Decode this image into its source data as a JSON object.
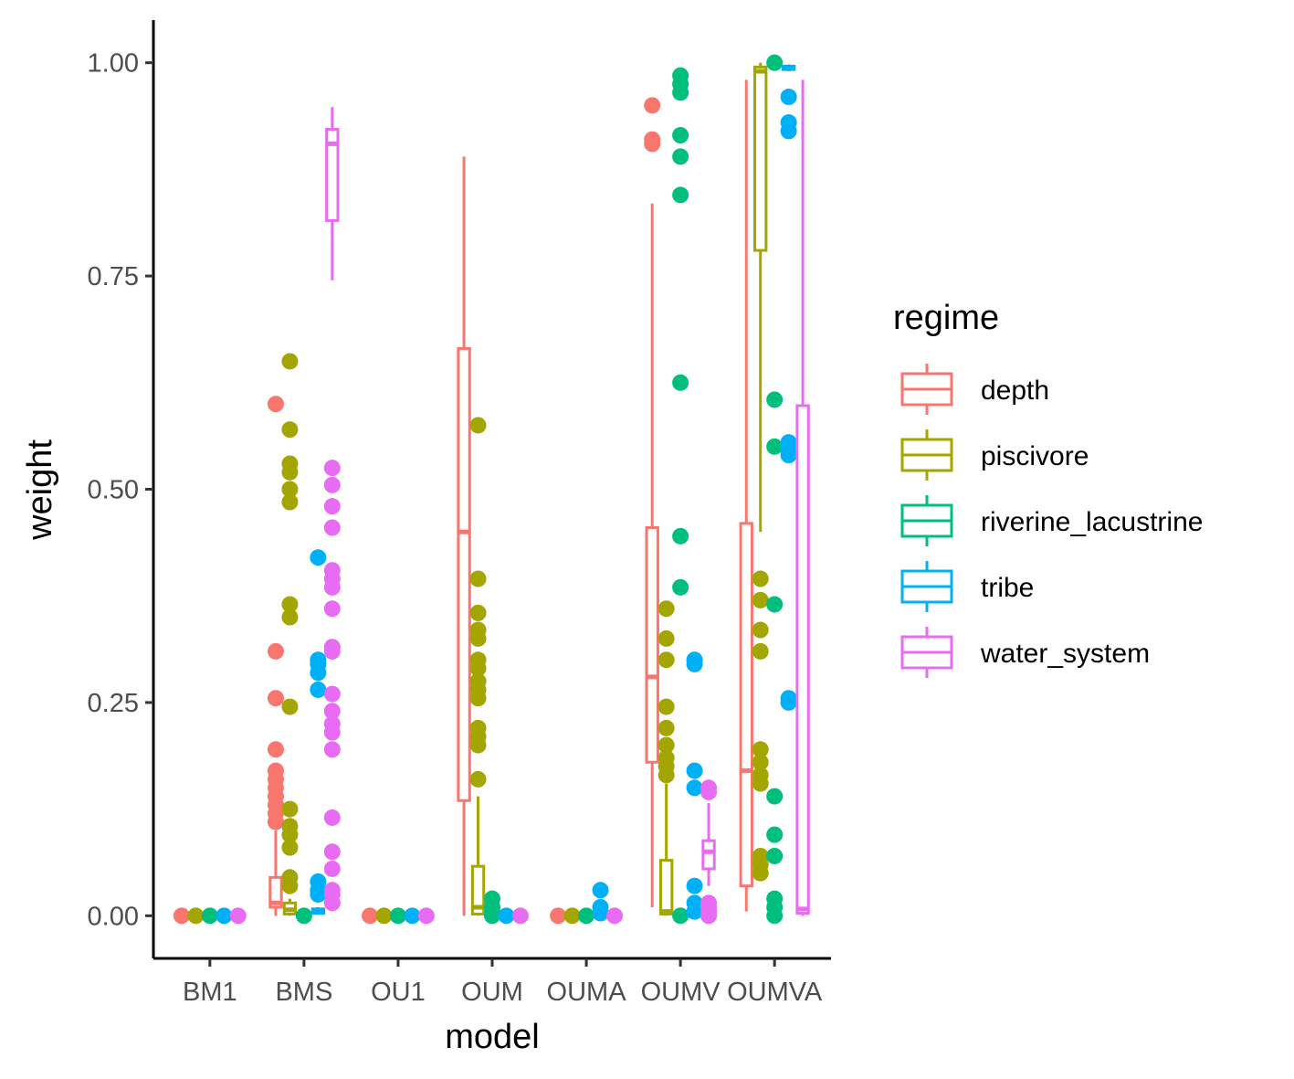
{
  "chart_data": {
    "type": "boxplot",
    "xlabel": "model",
    "ylabel": "weight",
    "categories": [
      "BM1",
      "BMS",
      "OU1",
      "OUM",
      "OUMA",
      "OUMV",
      "OUMVA"
    ],
    "y_ticks": [
      "0.00",
      "0.25",
      "0.50",
      "0.75",
      "1.00"
    ],
    "ylim": [
      -0.05,
      1.05
    ],
    "grid": false,
    "legend": {
      "title": "regime",
      "placement": "right"
    },
    "series": [
      {
        "name": "depth",
        "color": "#F8766D",
        "boxes": [
          {
            "category": "BM1",
            "q1": 0,
            "median": 0,
            "q3": 0,
            "lower": 0,
            "upper": 0,
            "outliers": [
              0
            ]
          },
          {
            "category": "BMS",
            "q1": 0.01,
            "median": 0.015,
            "q3": 0.045,
            "lower": 0,
            "upper": 0.1,
            "outliers": [
              0.6,
              0.31,
              0.255,
              0.195,
              0.17,
              0.16,
              0.15,
              0.14,
              0.13,
              0.12,
              0.11
            ]
          },
          {
            "category": "OU1",
            "q1": 0,
            "median": 0,
            "q3": 0,
            "lower": 0,
            "upper": 0,
            "outliers": [
              0
            ]
          },
          {
            "category": "OUM",
            "q1": 0.135,
            "median": 0.45,
            "q3": 0.665,
            "lower": 0,
            "upper": 0.89,
            "outliers": []
          },
          {
            "category": "OUMA",
            "q1": 0,
            "median": 0,
            "q3": 0,
            "lower": 0,
            "upper": 0,
            "outliers": [
              0
            ]
          },
          {
            "category": "OUMV",
            "q1": 0.18,
            "median": 0.28,
            "q3": 0.455,
            "lower": 0.01,
            "upper": 0.835,
            "outliers": [
              0.95,
              0.91,
              0.905
            ]
          },
          {
            "category": "OUMVA",
            "q1": 0.035,
            "median": 0.17,
            "q3": 0.46,
            "lower": 0.005,
            "upper": 0.98,
            "outliers": []
          }
        ]
      },
      {
        "name": "piscivore",
        "color": "#A3A500",
        "boxes": [
          {
            "category": "BM1",
            "q1": 0,
            "median": 0,
            "q3": 0,
            "lower": 0,
            "upper": 0,
            "outliers": [
              0
            ]
          },
          {
            "category": "BMS",
            "q1": 0.002,
            "median": 0.007,
            "q3": 0.015,
            "lower": 0,
            "upper": 0.02,
            "outliers": [
              0.65,
              0.57,
              0.53,
              0.52,
              0.5,
              0.485,
              0.365,
              0.35,
              0.245,
              0.125,
              0.105,
              0.095,
              0.08,
              0.045,
              0.035
            ]
          },
          {
            "category": "OU1",
            "q1": 0,
            "median": 0,
            "q3": 0,
            "lower": 0,
            "upper": 0,
            "outliers": [
              0
            ]
          },
          {
            "category": "OUM",
            "q1": 0.002,
            "median": 0.01,
            "q3": 0.058,
            "lower": 0,
            "upper": 0.14,
            "outliers": [
              0.575,
              0.395,
              0.355,
              0.335,
              0.325,
              0.3,
              0.29,
              0.275,
              0.265,
              0.255,
              0.22,
              0.21,
              0.2,
              0.16
            ]
          },
          {
            "category": "OUMA",
            "q1": 0,
            "median": 0,
            "q3": 0,
            "lower": 0,
            "upper": 0,
            "outliers": [
              0
            ]
          },
          {
            "category": "OUMV",
            "q1": 0.002,
            "median": 0.005,
            "q3": 0.065,
            "lower": 0,
            "upper": 0.155,
            "outliers": [
              0.36,
              0.325,
              0.3,
              0.245,
              0.22,
              0.2,
              0.185,
              0.175,
              0.165
            ]
          },
          {
            "category": "OUMVA",
            "q1": 0.78,
            "median": 0.99,
            "q3": 0.995,
            "lower": 0.45,
            "upper": 1.0,
            "outliers": [
              0.395,
              0.37,
              0.335,
              0.31,
              0.195,
              0.18,
              0.165,
              0.155,
              0.07,
              0.06,
              0.05
            ]
          }
        ]
      },
      {
        "name": "riverine_lacustrine",
        "color": "#00BF7D",
        "boxes": [
          {
            "category": "BM1",
            "q1": 0,
            "median": 0,
            "q3": 0,
            "lower": 0,
            "upper": 0,
            "outliers": [
              0
            ]
          },
          {
            "category": "BMS",
            "q1": 0,
            "median": 0,
            "q3": 0,
            "lower": 0,
            "upper": 0,
            "outliers": [
              0
            ]
          },
          {
            "category": "OU1",
            "q1": 0,
            "median": 0,
            "q3": 0,
            "lower": 0,
            "upper": 0,
            "outliers": [
              0
            ]
          },
          {
            "category": "OUM",
            "q1": 0,
            "median": 0,
            "q3": 0,
            "lower": 0,
            "upper": 0,
            "outliers": [
              0.02,
              0.01,
              0.005,
              0
            ]
          },
          {
            "category": "OUMA",
            "q1": 0,
            "median": 0,
            "q3": 0,
            "lower": 0,
            "upper": 0,
            "outliers": [
              0
            ]
          },
          {
            "category": "OUMV",
            "q1": 0,
            "median": 0,
            "q3": 0,
            "lower": 0,
            "upper": 0,
            "outliers": [
              0.985,
              0.975,
              0.965,
              0.915,
              0.89,
              0.845,
              0.625,
              0.445,
              0.385,
              0
            ]
          },
          {
            "category": "OUMVA",
            "q1": 0,
            "median": 0,
            "q3": 0,
            "lower": 0,
            "upper": 0,
            "outliers": [
              1.0,
              0.605,
              0.55,
              0.365,
              0.14,
              0.095,
              0.07,
              0.02,
              0.01,
              0
            ]
          }
        ]
      },
      {
        "name": "tribe",
        "color": "#00B0F6",
        "boxes": [
          {
            "category": "BM1",
            "q1": 0,
            "median": 0,
            "q3": 0,
            "lower": 0,
            "upper": 0,
            "outliers": [
              0
            ]
          },
          {
            "category": "BMS",
            "q1": 0.003,
            "median": 0.005,
            "q3": 0.008,
            "lower": 0.002,
            "upper": 0.01,
            "outliers": [
              0.42,
              0.3,
              0.295,
              0.285,
              0.265,
              0.04,
              0.03,
              0.025
            ]
          },
          {
            "category": "OU1",
            "q1": 0,
            "median": 0,
            "q3": 0,
            "lower": 0,
            "upper": 0,
            "outliers": [
              0
            ]
          },
          {
            "category": "OUM",
            "q1": 0,
            "median": 0,
            "q3": 0,
            "lower": 0,
            "upper": 0,
            "outliers": [
              0
            ]
          },
          {
            "category": "OUMA",
            "q1": 0,
            "median": 0,
            "q3": 0,
            "lower": 0,
            "upper": 0,
            "outliers": [
              0.03,
              0.01,
              0.003
            ]
          },
          {
            "category": "OUMV",
            "q1": 0,
            "median": 0,
            "q3": 0,
            "lower": 0,
            "upper": 0,
            "outliers": [
              0.3,
              0.295,
              0.17,
              0.15,
              0.035,
              0.015,
              0.005
            ]
          },
          {
            "category": "OUMVA",
            "q1": 0.992,
            "median": 0.994,
            "q3": 0.996,
            "lower": 0.99,
            "upper": 0.998,
            "outliers": [
              0.96,
              0.93,
              0.92,
              0.555,
              0.545,
              0.54,
              0.255,
              0.25
            ]
          }
        ]
      },
      {
        "name": "water_system",
        "color": "#E76BF3",
        "boxes": [
          {
            "category": "BM1",
            "q1": 0,
            "median": 0,
            "q3": 0,
            "lower": 0,
            "upper": 0,
            "outliers": [
              0
            ]
          },
          {
            "category": "BMS",
            "q1": 0.815,
            "median": 0.905,
            "q3": 0.922,
            "lower": 0.745,
            "upper": 0.948,
            "outliers": [
              0.525,
              0.505,
              0.48,
              0.455,
              0.405,
              0.395,
              0.385,
              0.36,
              0.315,
              0.31,
              0.26,
              0.24,
              0.225,
              0.215,
              0.195,
              0.115,
              0.075,
              0.055,
              0.03,
              0.025,
              0.015
            ]
          },
          {
            "category": "OU1",
            "q1": 0,
            "median": 0,
            "q3": 0,
            "lower": 0,
            "upper": 0,
            "outliers": [
              0
            ]
          },
          {
            "category": "OUM",
            "q1": 0,
            "median": 0,
            "q3": 0,
            "lower": 0,
            "upper": 0,
            "outliers": [
              0
            ]
          },
          {
            "category": "OUMA",
            "q1": 0,
            "median": 0,
            "q3": 0,
            "lower": 0,
            "upper": 0,
            "outliers": [
              0
            ]
          },
          {
            "category": "OUMV",
            "q1": 0.055,
            "median": 0.075,
            "q3": 0.088,
            "lower": 0.035,
            "upper": 0.132,
            "outliers": [
              0.15,
              0.145,
              0.015,
              0.01,
              0.005,
              0
            ]
          },
          {
            "category": "OUMVA",
            "q1": 0.003,
            "median": 0.008,
            "q3": 0.598,
            "lower": 0,
            "upper": 0.98,
            "outliers": []
          }
        ]
      }
    ]
  }
}
